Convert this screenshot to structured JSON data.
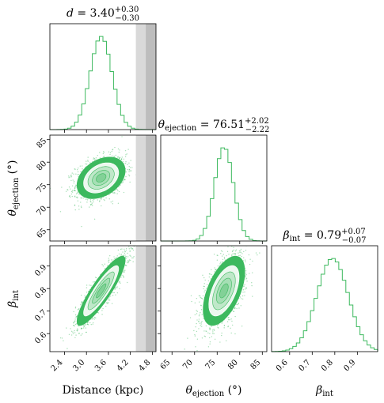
{
  "chart_data": {
    "type": "corner",
    "color": "#3cb95e",
    "shade_colors": [
      "#d9d9d9",
      "#bdbdbd"
    ],
    "parameters": [
      {
        "key": "d",
        "label": "Distance (kpc)",
        "range": [
          2.0,
          4.9
        ],
        "ticks": [
          2.4,
          3.0,
          3.6,
          4.2,
          4.8
        ],
        "tick_labels": [
          "2.4",
          "3.0",
          "3.6",
          "4.2",
          "4.8"
        ],
        "mean": 3.4,
        "sd": 0.3
      },
      {
        "key": "theta",
        "label": "θ",
        "label_sub": "ejection",
        "label_unit": " (°)",
        "range": [
          62.5,
          86.0
        ],
        "ticks": [
          65,
          70,
          75,
          80,
          85
        ],
        "tick_labels": [
          "65",
          "70",
          "75",
          "80",
          "85"
        ],
        "mean": 76.51,
        "sd": 2.1
      },
      {
        "key": "beta",
        "label": "β",
        "label_sub": "int",
        "label_unit": "",
        "range": [
          0.52,
          0.99
        ],
        "ticks": [
          0.6,
          0.7,
          0.8,
          0.9
        ],
        "tick_labels": [
          "0.6",
          "0.7",
          "0.8",
          "0.9"
        ],
        "mean": 0.79,
        "sd": 0.07
      }
    ],
    "titles": [
      {
        "sym": "d",
        "sub": "",
        "val": " = 3.40",
        "up": "+0.30",
        "dn": "−0.30"
      },
      {
        "sym": "θ",
        "sub": "ejection",
        "val": " = 76.51",
        "up": "+2.02",
        "dn": "−2.22"
      },
      {
        "sym": "β",
        "sub": "int",
        "val": " = 0.79",
        "up": "+0.07",
        "dn": "−0.07"
      }
    ],
    "shaded_distance_bands": [
      [
        4.35,
        4.62
      ],
      [
        4.62,
        4.9
      ]
    ],
    "correlations": {
      "d_theta": 0.35,
      "d_beta": 0.88,
      "theta_beta": 0.55
    },
    "hist_bins": 30,
    "hist_style": "step"
  }
}
